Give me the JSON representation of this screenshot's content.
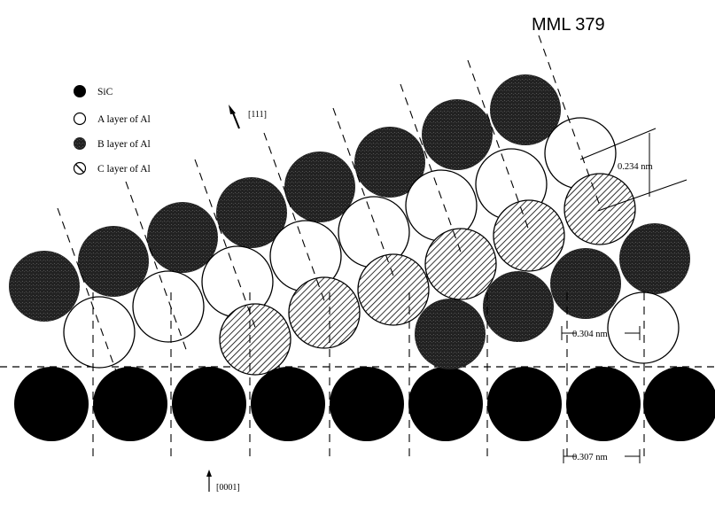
{
  "figure_label": "MML 379",
  "legend": {
    "items": [
      {
        "label": "SiC",
        "swatch": "solid-black"
      },
      {
        "label": "A layer of Al",
        "swatch": "open-white"
      },
      {
        "label": "B layer of Al",
        "swatch": "dark-gray"
      },
      {
        "label": "C layer of Al",
        "swatch": "hatched"
      }
    ]
  },
  "directions": {
    "al_normal": "[111]",
    "sic_normal": "[0001]"
  },
  "dimensions": {
    "layer_spacing": "0.234 nm",
    "al_spacing": "0.304 nm",
    "sic_spacing": "0.307 nm"
  },
  "colors": {
    "sic": "#000000",
    "a_layer": "#ffffff",
    "b_layer": "#2a2a2a",
    "hatch": "#000000"
  }
}
